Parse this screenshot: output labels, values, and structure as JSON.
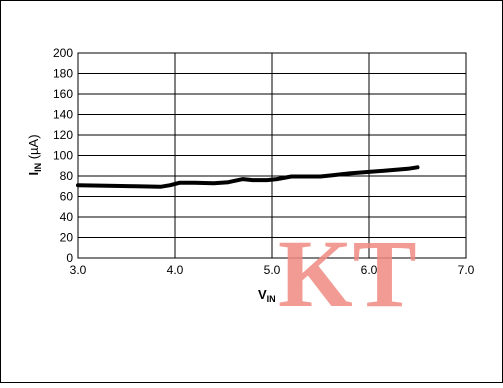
{
  "chart_data": {
    "type": "line",
    "xlabel": {
      "main": "V",
      "sub": "IN"
    },
    "ylabel": {
      "main": "I",
      "sub": "IN",
      "unit": " (µA)"
    },
    "xlim": [
      3.0,
      7.0
    ],
    "ylim": [
      0,
      200
    ],
    "x_ticks": [
      "3.0",
      "4.0",
      "5.0",
      "6.0",
      "7.0"
    ],
    "y_ticks": [
      "0",
      "20",
      "40",
      "60",
      "80",
      "100",
      "120",
      "140",
      "160",
      "180",
      "200"
    ],
    "grid": {
      "vertical": true,
      "horizontal": true
    },
    "series": [
      {
        "color": "#000000",
        "x": [
          3.0,
          3.3,
          3.6,
          3.85,
          3.95,
          4.05,
          4.2,
          4.4,
          4.55,
          4.7,
          4.8,
          4.95,
          5.05,
          5.2,
          5.3,
          5.5,
          5.6,
          5.8,
          6.0,
          6.2,
          6.4,
          6.5
        ],
        "y": [
          71,
          70.5,
          70,
          69.5,
          71,
          73.5,
          73.5,
          73,
          74,
          77,
          76,
          76,
          77,
          79.5,
          79.5,
          79.5,
          80.5,
          82.5,
          84,
          85.5,
          87,
          88.5
        ]
      }
    ]
  },
  "watermark": {
    "text": "KT",
    "color": "#ef8a82"
  }
}
